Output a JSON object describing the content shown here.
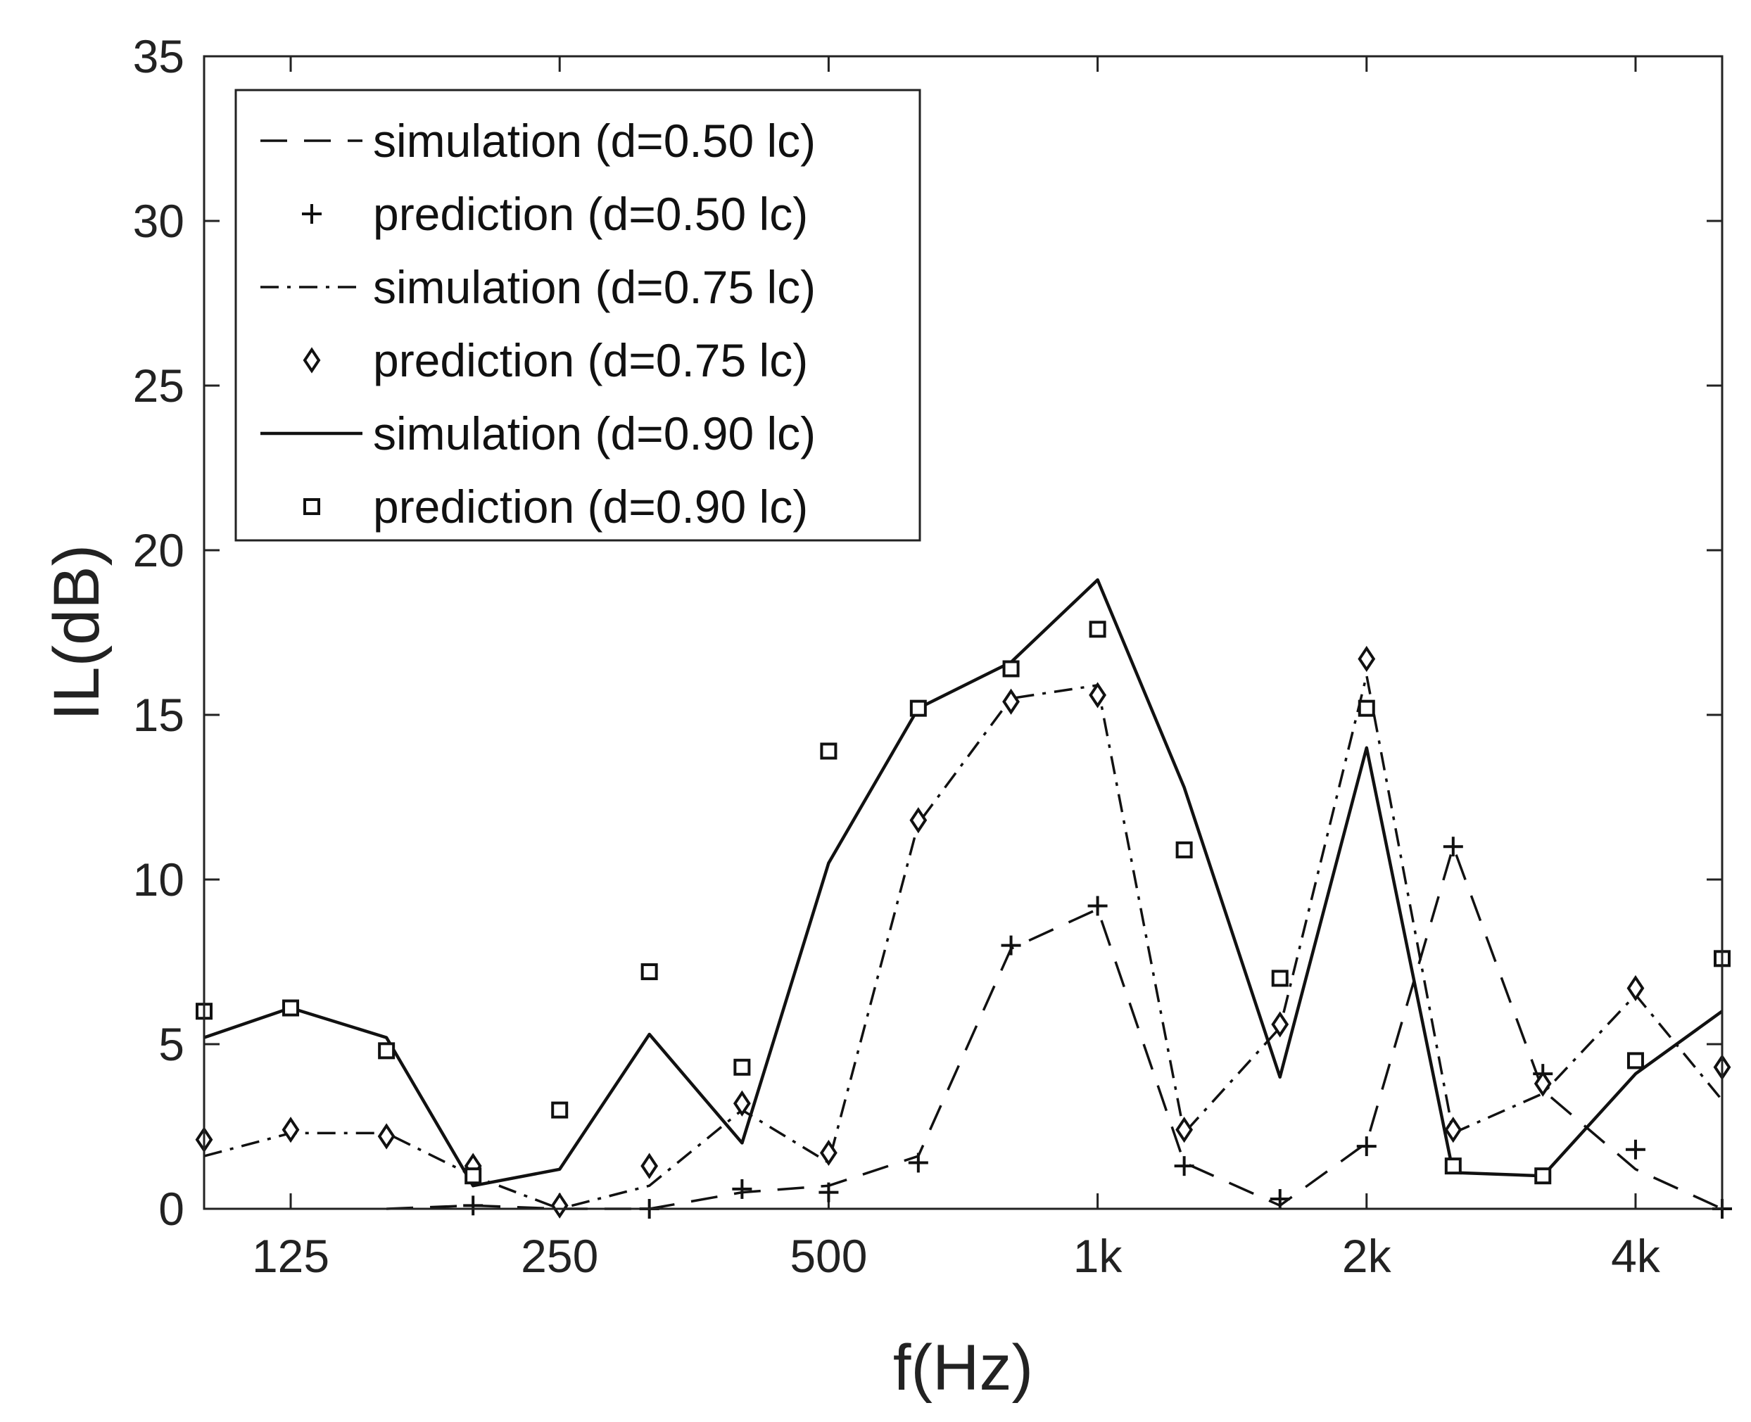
{
  "chart_data": {
    "type": "line",
    "title": "",
    "xlabel": "f(Hz)",
    "ylabel": "IL(dB)",
    "xscale": "log",
    "xlim": [
      100,
      5000
    ],
    "ylim": [
      0,
      35
    ],
    "yticks": [
      0,
      5,
      10,
      15,
      20,
      25,
      30,
      35
    ],
    "xticks": [
      {
        "value": 125,
        "label": "125"
      },
      {
        "value": 250,
        "label": "250"
      },
      {
        "value": 500,
        "label": "500"
      },
      {
        "value": 1000,
        "label": "1k"
      },
      {
        "value": 2000,
        "label": "2k"
      },
      {
        "value": 4000,
        "label": "4k"
      }
    ],
    "legend_position": "top-left",
    "x": [
      100,
      125,
      160,
      200,
      250,
      315,
      400,
      500,
      630,
      800,
      1000,
      1250,
      1600,
      2000,
      2500,
      3150,
      4000,
      5000
    ],
    "series": [
      {
        "name": "simulation (d=0.50 lc)",
        "style": "dashed",
        "values": [
          null,
          null,
          0.0,
          0.1,
          0.0,
          0.0,
          0.5,
          0.7,
          1.6,
          7.9,
          9.1,
          1.4,
          0.1,
          2.0,
          11.0,
          3.6,
          1.2,
          0.0
        ]
      },
      {
        "name": "prediction (d=0.50 lc)",
        "marker": "plus",
        "values": [
          null,
          null,
          null,
          0.1,
          null,
          0.0,
          0.6,
          0.5,
          1.4,
          8.0,
          9.2,
          1.3,
          0.3,
          1.9,
          11.0,
          4.1,
          1.8,
          0.0
        ]
      },
      {
        "name": "simulation (d=0.75 lc)",
        "style": "dashdot",
        "values": [
          1.6,
          2.3,
          2.3,
          1.0,
          0.0,
          0.7,
          3.0,
          1.4,
          11.7,
          15.5,
          15.9,
          2.3,
          5.5,
          16.2,
          2.3,
          3.5,
          6.5,
          3.3
        ]
      },
      {
        "name": "prediction (d=0.75 lc)",
        "marker": "diamond",
        "values": [
          2.1,
          2.4,
          2.2,
          1.3,
          0.1,
          1.3,
          3.2,
          1.7,
          11.8,
          15.4,
          15.6,
          2.4,
          5.6,
          16.7,
          2.4,
          3.8,
          6.7,
          4.3
        ]
      },
      {
        "name": "simulation (d=0.90 lc)",
        "style": "solid",
        "values": [
          5.2,
          6.1,
          5.2,
          0.7,
          1.2,
          5.3,
          2.0,
          10.5,
          15.2,
          16.6,
          19.1,
          12.8,
          4.0,
          14.0,
          1.1,
          1.0,
          4.1,
          6.0
        ]
      },
      {
        "name": "prediction (d=0.90 lc)",
        "marker": "square",
        "values": [
          6.0,
          6.1,
          4.8,
          1.0,
          3.0,
          7.2,
          4.3,
          13.9,
          15.2,
          16.4,
          17.6,
          10.9,
          7.0,
          15.2,
          1.3,
          1.0,
          4.5,
          7.6
        ]
      }
    ]
  }
}
